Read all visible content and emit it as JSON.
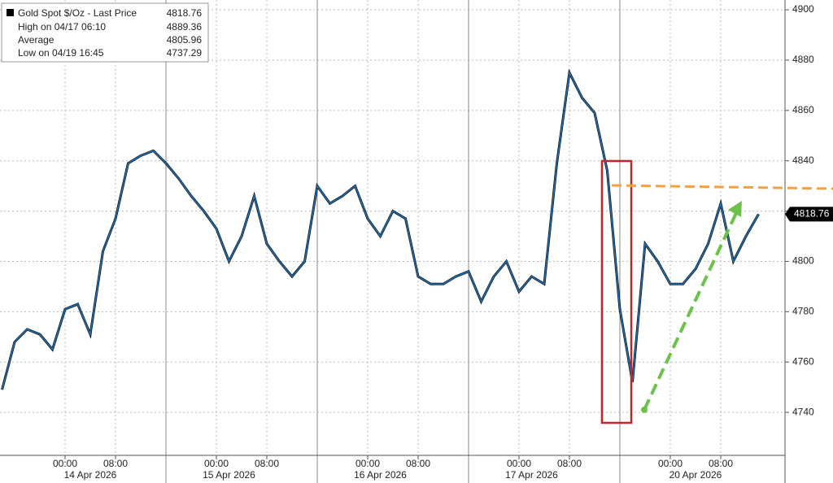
{
  "chart_data": {
    "type": "line",
    "series": [
      {
        "name": "Gold Spot $/Oz - Last Price",
        "color": "#1f6fb5",
        "values": [
          4749,
          4768,
          4773,
          4771,
          4765,
          4781,
          4783,
          4771,
          4804,
          4817,
          4839,
          4842,
          4844,
          4839,
          4833,
          4826,
          4820,
          4813,
          4800,
          4810,
          4826,
          4807,
          4800,
          4794,
          4800,
          4830,
          4823,
          4826,
          4830,
          4817,
          4810,
          4820,
          4817,
          4794,
          4791,
          4791,
          4794,
          4796,
          4784,
          4794,
          4800,
          4788,
          4794,
          4791,
          4839,
          4875,
          4865,
          4859,
          4836,
          4781,
          4752,
          4807,
          4800,
          4791,
          4791,
          4797,
          4807,
          4823,
          4800,
          4810,
          4818.76
        ]
      }
    ],
    "x": [
      null,
      null,
      null,
      null,
      null,
      "00:00",
      null,
      null,
      null,
      "08:00",
      null,
      null,
      null,
      null,
      null,
      null,
      null,
      "00:00",
      null,
      null,
      null,
      "08:00",
      null,
      null,
      null,
      null,
      null,
      null,
      null,
      "00:00",
      null,
      null,
      null,
      "08:00",
      null,
      null,
      null,
      null,
      null,
      null,
      null,
      "00:00",
      null,
      null,
      null,
      "08:00",
      null,
      null,
      null,
      null,
      null,
      null,
      null,
      "00:00",
      null,
      null,
      null,
      "08:00",
      null,
      null,
      null
    ],
    "dates": [
      null,
      null,
      null,
      null,
      null,
      null,
      null,
      "14 Apr 2026",
      null,
      null,
      null,
      null,
      null,
      null,
      null,
      null,
      null,
      null,
      "15 Apr 2026",
      null,
      null,
      null,
      null,
      null,
      null,
      null,
      null,
      null,
      null,
      null,
      "16 Apr 2026",
      null,
      null,
      null,
      null,
      null,
      null,
      null,
      null,
      null,
      null,
      null,
      "17 Apr 2026",
      null,
      null,
      null,
      null,
      null,
      null,
      null,
      null,
      null,
      null,
      null,
      null,
      "20 Apr 2026",
      null,
      null,
      null,
      null,
      null
    ],
    "legend": [
      {
        "label": "High on 04/17 06:10",
        "value": 4889.36
      },
      {
        "label": "Average",
        "value": 4805.96
      },
      {
        "label": "Low on 04/19 16:45",
        "value": 4737.29
      }
    ],
    "ylim": [
      4722.9,
      4903.9
    ],
    "yticks": [
      4740,
      4760,
      4780,
      4800,
      4820,
      4840,
      4860,
      4880,
      4900
    ],
    "grid": true
  }
}
